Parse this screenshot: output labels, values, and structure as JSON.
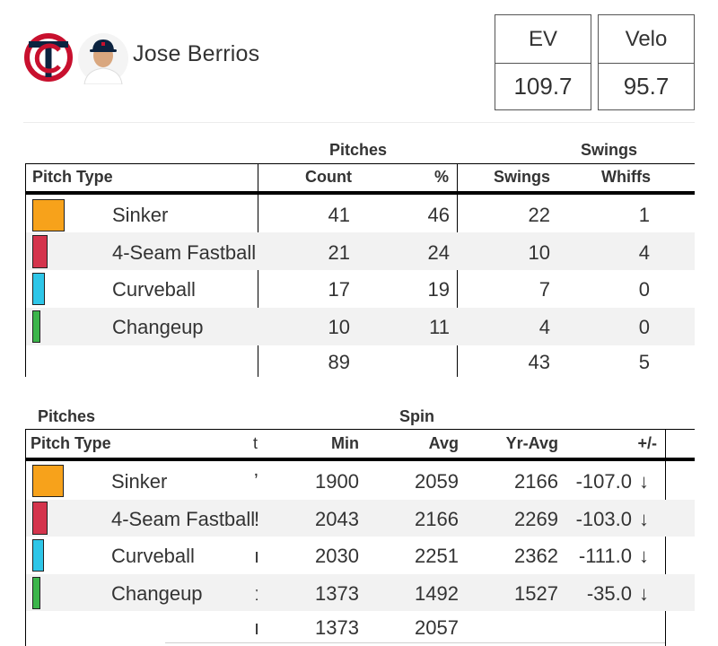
{
  "player": {
    "name": "Jose Berrios",
    "team_logo_icon": "twins-tc-logo-icon",
    "avatar_icon": "player-headshot-icon"
  },
  "summary": {
    "ev": {
      "label": "EV",
      "value": "109.7"
    },
    "velo": {
      "label": "Velo",
      "value": "95.7"
    }
  },
  "pitch_table": {
    "group_pitches": "Pitches",
    "group_swings": "Swings",
    "headers": {
      "pitch_type": "Pitch Type",
      "count": "Count",
      "pct": "%",
      "swings": "Swings",
      "whiffs": "Whiffs"
    },
    "rows": [
      {
        "pitch": "Sinker",
        "color": "#f7a21b",
        "count": "41",
        "pct": "46",
        "swings": "22",
        "whiffs": "1"
      },
      {
        "pitch": "4-Seam Fastball",
        "color": "#d4344c",
        "count": "21",
        "pct": "24",
        "swings": "10",
        "whiffs": "4"
      },
      {
        "pitch": "Curveball",
        "color": "#2ec6e8",
        "count": "17",
        "pct": "19",
        "swings": "7",
        "whiffs": "0"
      },
      {
        "pitch": "Changeup",
        "color": "#3bb54a",
        "count": "10",
        "pct": "11",
        "swings": "4",
        "whiffs": "0"
      }
    ],
    "totals": {
      "count": "89",
      "swings": "43",
      "whiffs": "5"
    }
  },
  "spin_table": {
    "group_pitches": "Pitches",
    "group_spin": "Spin",
    "headers": {
      "pitch_type": "Pitch Type",
      "clipped": "t",
      "min": "Min",
      "avg": "Avg",
      "yr_avg": "Yr-Avg",
      "diff": "+/-"
    },
    "rows": [
      {
        "pitch": "Sinker",
        "color": "#f7a21b",
        "clipped": "ʼ",
        "min": "1900",
        "avg": "2059",
        "yr_avg": "2166",
        "diff": "-107.0",
        "arrow": "↓"
      },
      {
        "pitch": "4-Seam Fastball",
        "color": "#d4344c",
        "clipped": "!",
        "min": "2043",
        "avg": "2166",
        "yr_avg": "2269",
        "diff": "-103.0",
        "arrow": "↓"
      },
      {
        "pitch": "Curveball",
        "color": "#2ec6e8",
        "clipped": "ı",
        "min": "2030",
        "avg": "2251",
        "yr_avg": "2362",
        "diff": "-111.0",
        "arrow": "↓"
      },
      {
        "pitch": "Changeup",
        "color": "#3bb54a",
        "clipped": "ː",
        "min": "1373",
        "avg": "1492",
        "yr_avg": "1527",
        "diff": "-35.0",
        "arrow": "↓"
      }
    ],
    "totals": {
      "clipped": "ı",
      "min": "1373",
      "avg": "2057"
    }
  }
}
